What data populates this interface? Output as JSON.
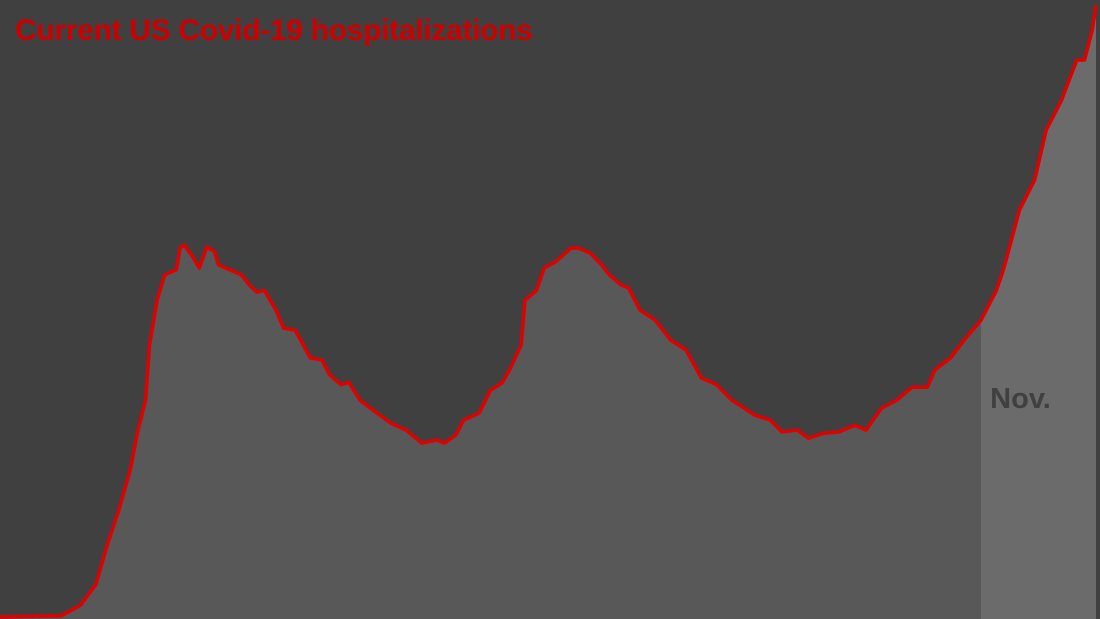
{
  "chart_data": {
    "type": "area",
    "title": "Current US Covid-19 hospitalizations",
    "xlabel": "",
    "ylabel": "",
    "xlim": [
      "2020-02-19",
      "2020-12-01"
    ],
    "ylim": [
      0,
      100000
    ],
    "grid": false,
    "legend": "none",
    "colors": {
      "background": "#404040",
      "area": "#585858",
      "highlight_band": "#6b6b6b",
      "line": "#e00000",
      "title": "#cc0000",
      "annotation": "#404040"
    },
    "highlight": {
      "label": "Nov.",
      "start": "2020-11-01",
      "end": "2020-12-01"
    },
    "series": [
      {
        "x": [
          "2020-02-19",
          "2020-03-06",
          "2020-03-11",
          "2020-03-15",
          "2020-03-18",
          "2020-03-21",
          "2020-03-24",
          "2020-03-26",
          "2020-03-28",
          "2020-03-29",
          "2020-03-31",
          "2020-04-02",
          "2020-04-05",
          "2020-04-06",
          "2020-04-07",
          "2020-04-09",
          "2020-04-11",
          "2020-04-13",
          "2020-04-15",
          "2020-04-16",
          "2020-04-19",
          "2020-04-22",
          "2020-04-24",
          "2020-04-26",
          "2020-04-28",
          "2020-05-01",
          "2020-05-03",
          "2020-05-06",
          "2020-05-10",
          "2020-05-13",
          "2020-05-15",
          "2020-05-18",
          "2020-05-20",
          "2020-05-23",
          "2020-05-27",
          "2020-05-31",
          "2020-06-04",
          "2020-06-08",
          "2020-06-12",
          "2020-06-14",
          "2020-06-17",
          "2020-06-19",
          "2020-06-23",
          "2020-06-26",
          "2020-06-29",
          "2020-07-01",
          "2020-07-04",
          "2020-07-05",
          "2020-07-08",
          "2020-07-10",
          "2020-07-13",
          "2020-07-17",
          "2020-07-19",
          "2020-07-22",
          "2020-07-25",
          "2020-07-27",
          "2020-07-30",
          "2020-08-01",
          "2020-08-04",
          "2020-08-08",
          "2020-08-12",
          "2020-08-16",
          "2020-08-20",
          "2020-08-24",
          "2020-08-28",
          "2020-08-30",
          "2020-09-03",
          "2020-09-07",
          "2020-09-10",
          "2020-09-14",
          "2020-09-17",
          "2020-09-21",
          "2020-09-25",
          "2020-09-29",
          "2020-10-02",
          "2020-10-06",
          "2020-10-10",
          "2020-10-14",
          "2020-10-18",
          "2020-10-20",
          "2020-10-24",
          "2020-10-28",
          "2020-11-01",
          "2020-11-05",
          "2020-11-07",
          "2020-11-11",
          "2020-11-15",
          "2020-11-18",
          "2020-11-22",
          "2020-11-26",
          "2020-11-28",
          "2020-11-30",
          "2020-12-01"
        ],
        "values": [
          0,
          200,
          1900,
          5200,
          11600,
          17200,
          23700,
          30100,
          34900,
          43800,
          51000,
          55100,
          55900,
          59400,
          59900,
          58300,
          56200,
          59600,
          58800,
          56700,
          55900,
          55100,
          53500,
          52300,
          52600,
          49400,
          46500,
          46200,
          41700,
          41400,
          39000,
          37400,
          37800,
          34900,
          33000,
          31200,
          30100,
          28000,
          28500,
          28000,
          29300,
          31700,
          32800,
          36500,
          37700,
          39800,
          43800,
          51000,
          52600,
          56200,
          57200,
          59400,
          59400,
          58600,
          56700,
          55100,
          53500,
          53000,
          49400,
          47800,
          44600,
          43000,
          38500,
          37400,
          34900,
          34100,
          32500,
          31700,
          29800,
          30100,
          28800,
          29600,
          29800,
          30900,
          30100,
          33600,
          34900,
          37000,
          37000,
          39800,
          41700,
          44900,
          47800,
          52600,
          56200,
          65500,
          70400,
          78400,
          83200,
          89700,
          89700,
          94500,
          98500
        ]
      }
    ]
  }
}
